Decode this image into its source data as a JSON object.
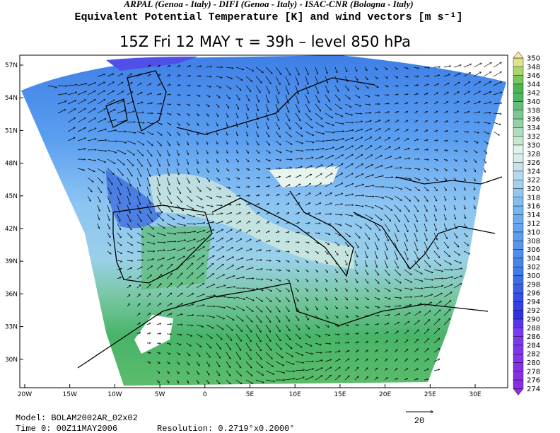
{
  "header": {
    "institutions": "ARPAL (Genoa - Italy)  -  DIFI (Genoa - Italy)  -  ISAC-CNR (Bologna - Italy)",
    "field": "Equivalent Potential Temperature [K] and wind vectors [m s⁻¹]",
    "title": "15Z Fri 12 MAY  τ = 39h  –  level 850 hPa"
  },
  "map": {
    "lat_labels": [
      "57N",
      "54N",
      "51N",
      "48N",
      "45N",
      "42N",
      "39N",
      "36N",
      "33N",
      "30N"
    ],
    "lon_labels": [
      "20W",
      "15W",
      "10W",
      "5W",
      "0",
      "5E",
      "10E",
      "15E",
      "20E",
      "25E",
      "30E"
    ],
    "reference_vector": "20"
  },
  "colorbar": {
    "levels": [
      350,
      348,
      346,
      344,
      342,
      340,
      338,
      336,
      334,
      332,
      330,
      328,
      326,
      324,
      322,
      320,
      318,
      316,
      314,
      312,
      310,
      308,
      306,
      304,
      302,
      300,
      298,
      296,
      294,
      292,
      290,
      288,
      286,
      284,
      282,
      280,
      278,
      276,
      274
    ]
  },
  "footer": {
    "model": "Model: BOLAM2002AR_02x02",
    "time": "Time 0: 00Z11MAY2006",
    "resolution": "Resolution: 0.2719°x0.2000°"
  }
}
